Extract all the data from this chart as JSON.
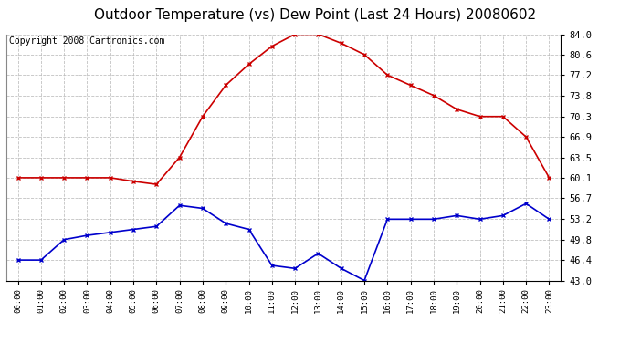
{
  "title": "Outdoor Temperature (vs) Dew Point (Last 24 Hours) 20080602",
  "copyright": "Copyright 2008 Cartronics.com",
  "hours": [
    "00:00",
    "01:00",
    "02:00",
    "03:00",
    "04:00",
    "05:00",
    "06:00",
    "07:00",
    "08:00",
    "09:00",
    "10:00",
    "11:00",
    "12:00",
    "13:00",
    "14:00",
    "15:00",
    "16:00",
    "17:00",
    "18:00",
    "19:00",
    "20:00",
    "21:00",
    "22:00",
    "23:00"
  ],
  "temp": [
    60.1,
    60.1,
    60.1,
    60.1,
    60.1,
    59.5,
    59.0,
    63.5,
    70.3,
    75.5,
    79.0,
    82.0,
    84.0,
    84.0,
    82.5,
    80.6,
    77.2,
    75.5,
    73.8,
    71.5,
    70.3,
    70.3,
    66.9,
    60.1
  ],
  "dew": [
    46.4,
    46.4,
    49.8,
    50.5,
    51.0,
    51.5,
    52.0,
    55.5,
    55.0,
    52.5,
    51.5,
    45.5,
    45.0,
    47.5,
    45.0,
    43.0,
    53.2,
    53.2,
    53.2,
    53.8,
    53.2,
    53.8,
    55.8,
    53.2
  ],
  "temp_color": "#cc0000",
  "dew_color": "#0000cc",
  "background_color": "#ffffff",
  "plot_bg_color": "#ffffff",
  "grid_color": "#bbbbbb",
  "yticks": [
    43.0,
    46.4,
    49.8,
    53.2,
    56.7,
    60.1,
    63.5,
    66.9,
    70.3,
    73.8,
    77.2,
    80.6,
    84.0
  ],
  "ylim": [
    43.0,
    84.0
  ],
  "title_fontsize": 11,
  "copyright_fontsize": 7
}
